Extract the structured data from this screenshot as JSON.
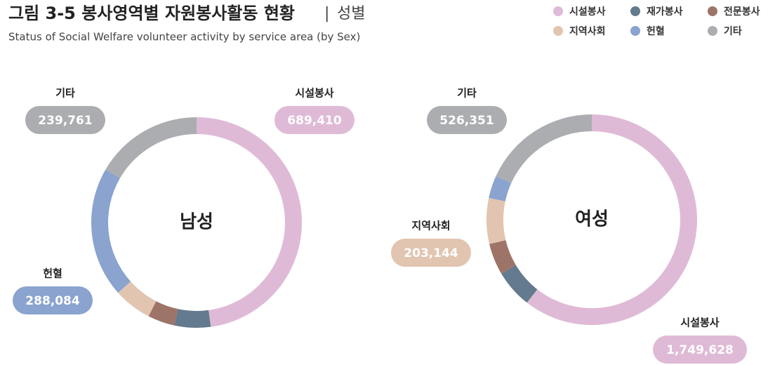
{
  "title": "그림 3-5 봉사영역별 자원봉사활동 현황",
  "title_suffix": "성별",
  "subtitle": "Status of Social Welfare volunteer activity by service area (by Sex)",
  "chart_data": [
    {
      "type": "donut",
      "center_label": "남성",
      "categories": [
        "시설봉사",
        "재가봉사",
        "전문봉사",
        "지역사회",
        "헌혈",
        "기타"
      ],
      "colors": [
        "#dfbad6",
        "#647a8e",
        "#9e7468",
        "#e2c5b0",
        "#8aa3cf",
        "#acadb0"
      ],
      "values": [
        689410,
        80000,
        60000,
        84000,
        288084,
        239761
      ],
      "value_labels": [
        "689,410",
        null,
        null,
        null,
        "288,084",
        "239,761"
      ]
    },
    {
      "type": "donut",
      "center_label": "여성",
      "categories": [
        "시설봉사",
        "재가봉사",
        "전문봉사",
        "지역사회",
        "헌혈",
        "기타"
      ],
      "colors": [
        "#dfbad6",
        "#647a8e",
        "#9e7468",
        "#e2c5b0",
        "#8aa3cf",
        "#acadb0"
      ],
      "values": [
        1749628,
        170000,
        140000,
        203144,
        100000,
        526351
      ],
      "value_labels": [
        "1,749,628",
        null,
        null,
        "203,144",
        null,
        "526,351"
      ]
    }
  ]
}
